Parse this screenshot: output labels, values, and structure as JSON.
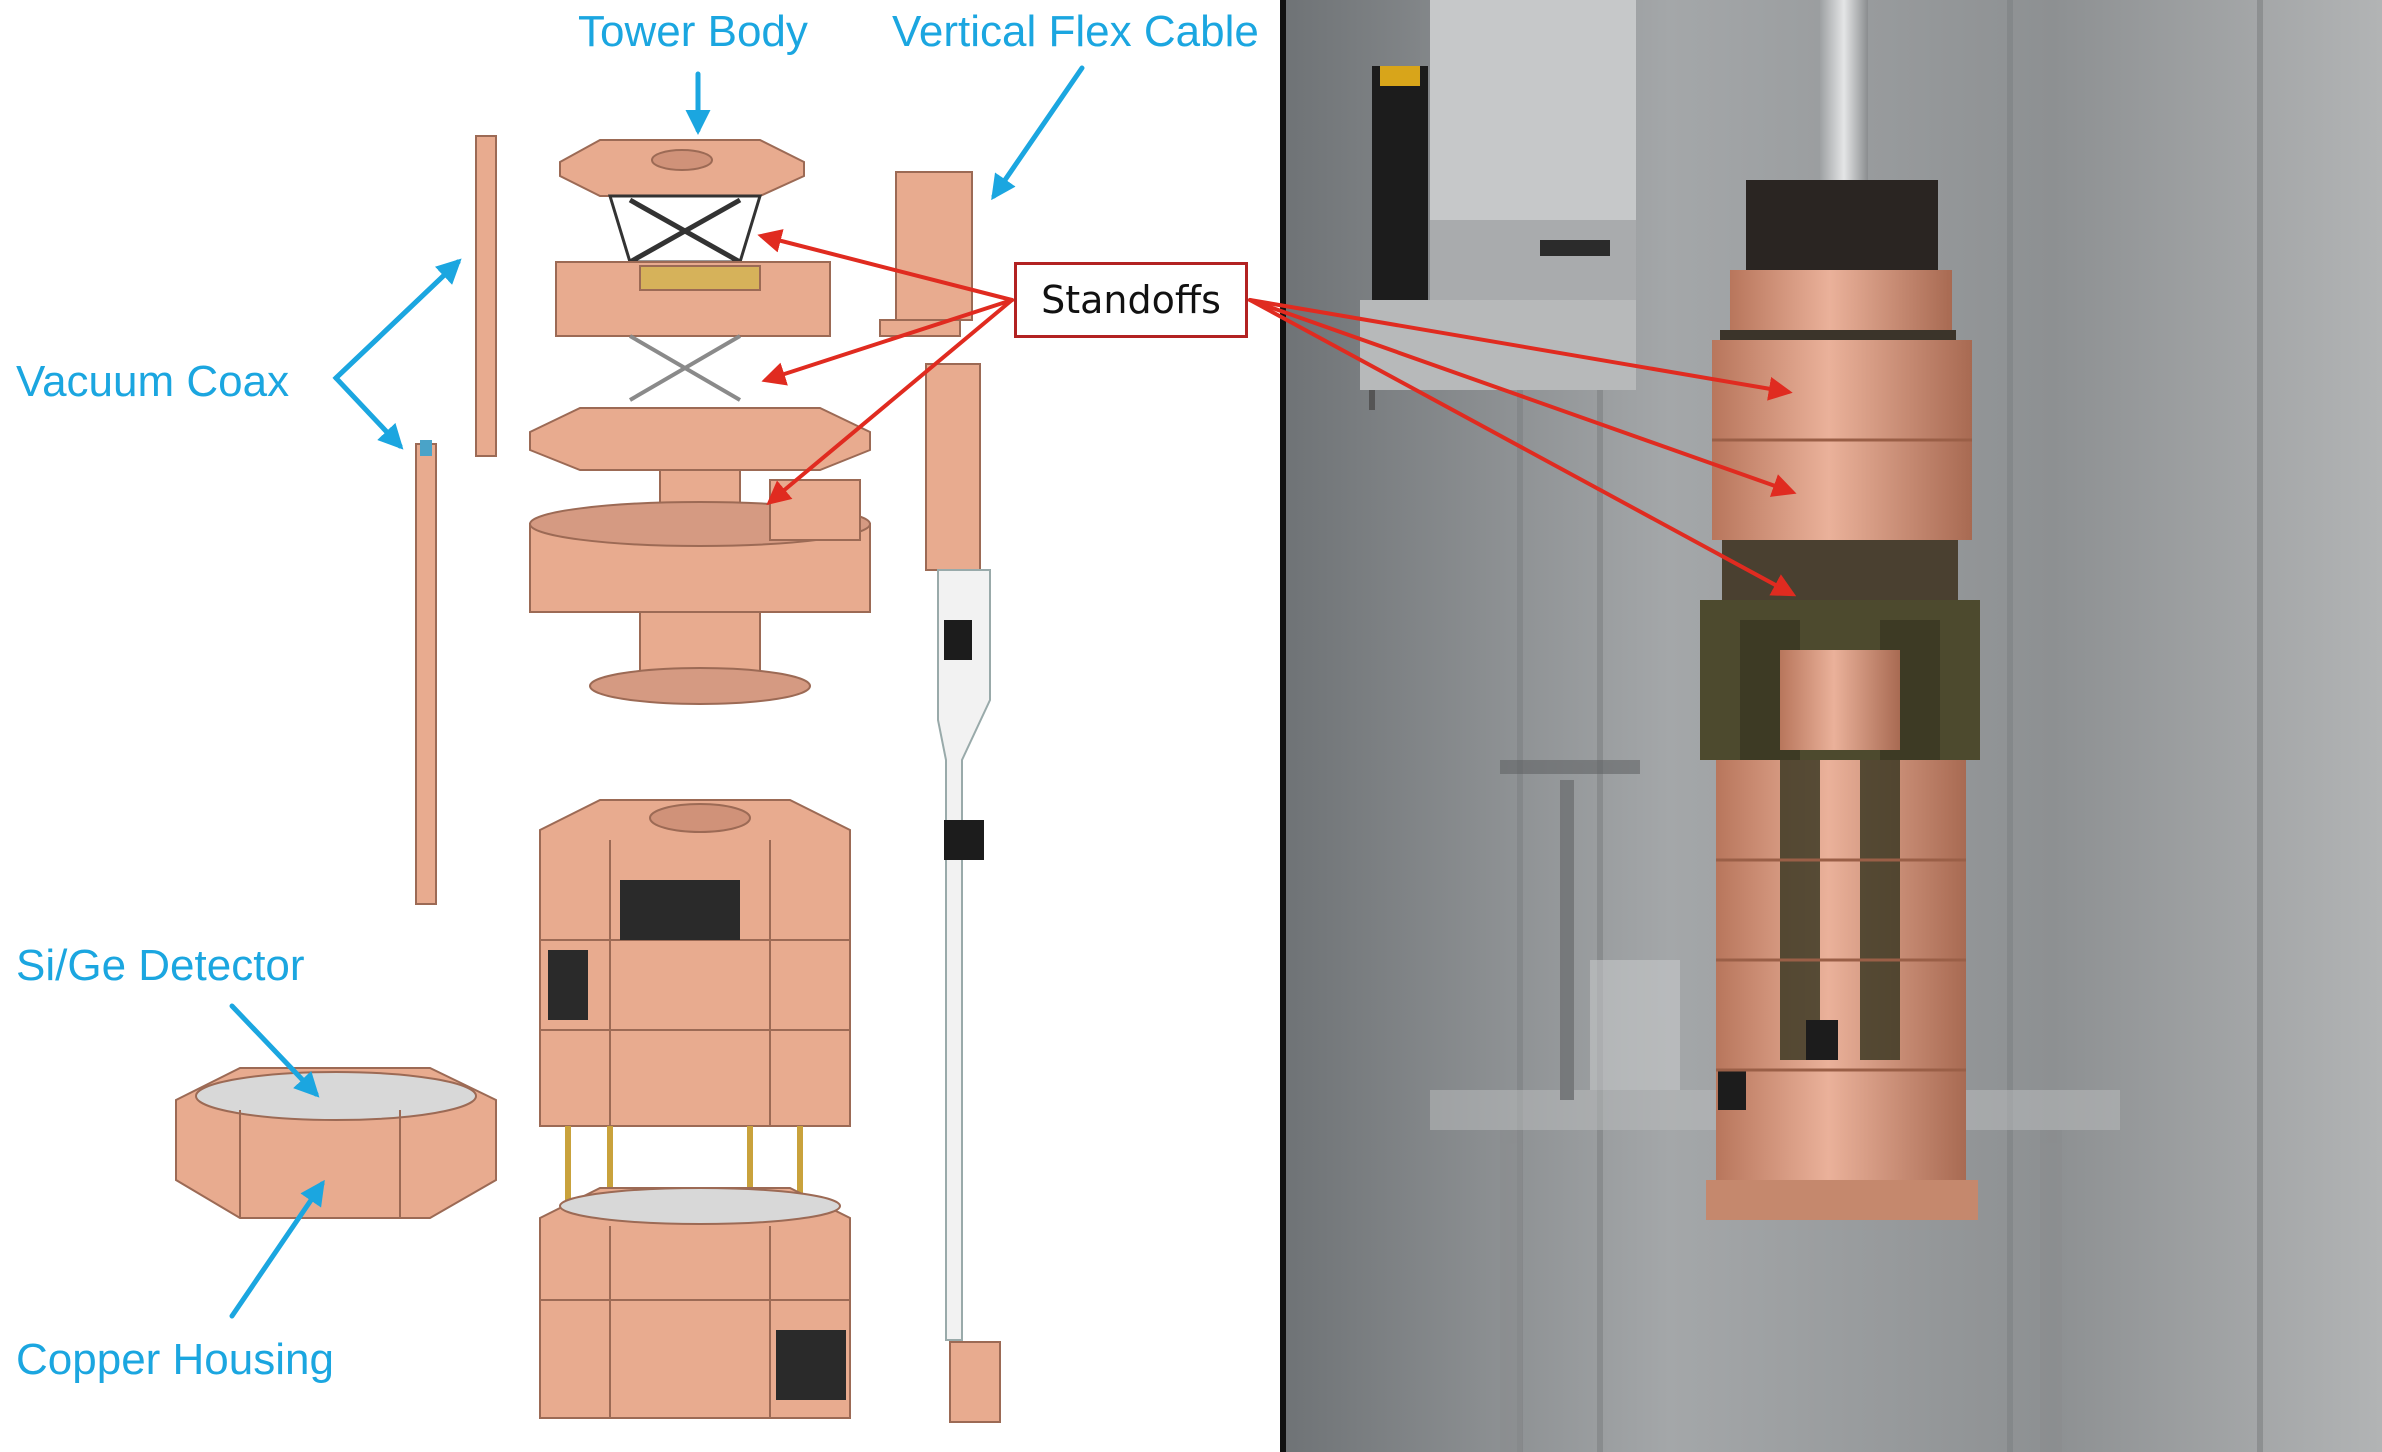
{
  "labels": {
    "tower_body": "Tower Body",
    "vertical_flex_cable": "Vertical Flex Cable",
    "vacuum_coax": "Vacuum Coax",
    "si_ge_detector": "Si/Ge Detector",
    "copper_housing": "Copper Housing",
    "standoffs": "Standoffs"
  },
  "colors": {
    "label_blue": "#1ba6e0",
    "arrow_red": "#e02b20",
    "box_border": "#b22222",
    "copper": "#e8ab8f",
    "copper_dark": "#c98a70",
    "divider": "#111111",
    "photo_bg": "#8f9294"
  }
}
